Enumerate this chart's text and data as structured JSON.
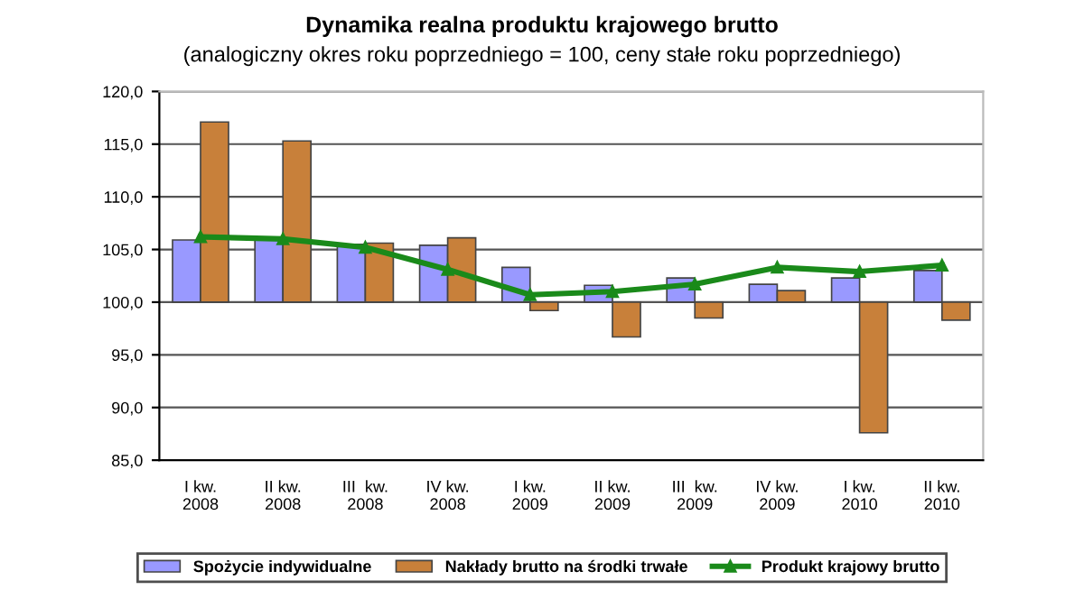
{
  "chart_data": {
    "type": "bar",
    "title": "Dynamika realna produktu krajowego brutto",
    "subtitle": "(analogiczny okres roku poprzedniego = 100, ceny stałe roku poprzedniego)",
    "categories": [
      "I kw.\n2008",
      "II kw.\n2008",
      "III  kw.\n2008",
      "IV kw.\n2008",
      "I kw.\n2009",
      "II kw.\n2009",
      "III  kw.\n2009",
      "IV kw.\n2009",
      "I kw.\n2010",
      "II kw.\n2010"
    ],
    "series": [
      {
        "name": "Spożycie indywidualne",
        "color": "#9999ff",
        "base": [
          100,
          100,
          100,
          100,
          100,
          100,
          100,
          100,
          100,
          100
        ],
        "values": [
          5.9,
          6.0,
          5.5,
          5.4,
          3.3,
          1.6,
          2.3,
          1.7,
          2.3,
          3.0
        ]
      },
      {
        "name": "Nakłady brutto na środki trwałe",
        "color": "#c8803a",
        "base": [
          100,
          100,
          100,
          100,
          100,
          100,
          100,
          100,
          100,
          100
        ],
        "values": [
          17.1,
          15.3,
          5.6,
          6.1,
          -0.8,
          -3.3,
          -1.5,
          1.1,
          -12.4,
          -1.7
        ]
      },
      {
        "name": "Produkt krajowy brutto",
        "type": "line",
        "color": "#1a8a1a",
        "marker": "triangle",
        "values": [
          106.2,
          106.0,
          105.2,
          103.1,
          100.7,
          101.0,
          101.7,
          103.3,
          102.9,
          103.5
        ]
      }
    ],
    "ylim": [
      85,
      120
    ],
    "yticks": [
      {
        "value": 85,
        "label": "85,0"
      },
      {
        "value": 90,
        "label": "90,0"
      },
      {
        "value": 95,
        "label": "95,0"
      },
      {
        "value": 100,
        "label": "100,0"
      },
      {
        "value": 105,
        "label": "105,0"
      },
      {
        "value": 110,
        "label": "110,0"
      },
      {
        "value": 115,
        "label": "115,0"
      },
      {
        "value": 120,
        "label": "120,0"
      }
    ],
    "grid": "y",
    "legend": "bottom"
  }
}
